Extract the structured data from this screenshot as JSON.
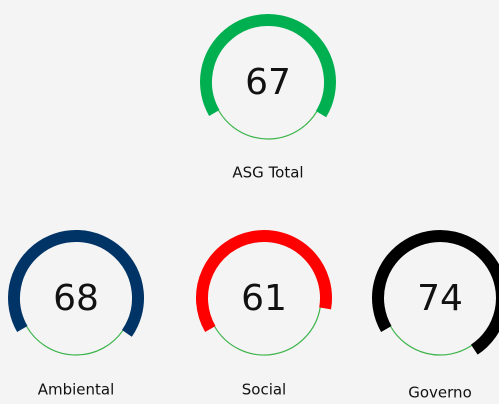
{
  "chart_data": [
    {
      "type": "gauge",
      "title": "ASG Total",
      "value": 67,
      "color": "#00b050",
      "track_color": "#3cb44b",
      "ylim": [
        0,
        100
      ]
    },
    {
      "type": "gauge",
      "title": "Ambiental",
      "value": 68,
      "color": "#003366",
      "track_color": "#3cb44b",
      "ylim": [
        0,
        100
      ]
    },
    {
      "type": "gauge",
      "title": "Social",
      "value": 61,
      "color": "#ff0000",
      "track_color": "#3cb44b",
      "ylim": [
        0,
        100
      ]
    },
    {
      "type": "gauge",
      "title": "Governo",
      "value": 74,
      "color": "#000000",
      "track_color": "#3cb44b",
      "ylim": [
        0,
        100
      ]
    }
  ]
}
